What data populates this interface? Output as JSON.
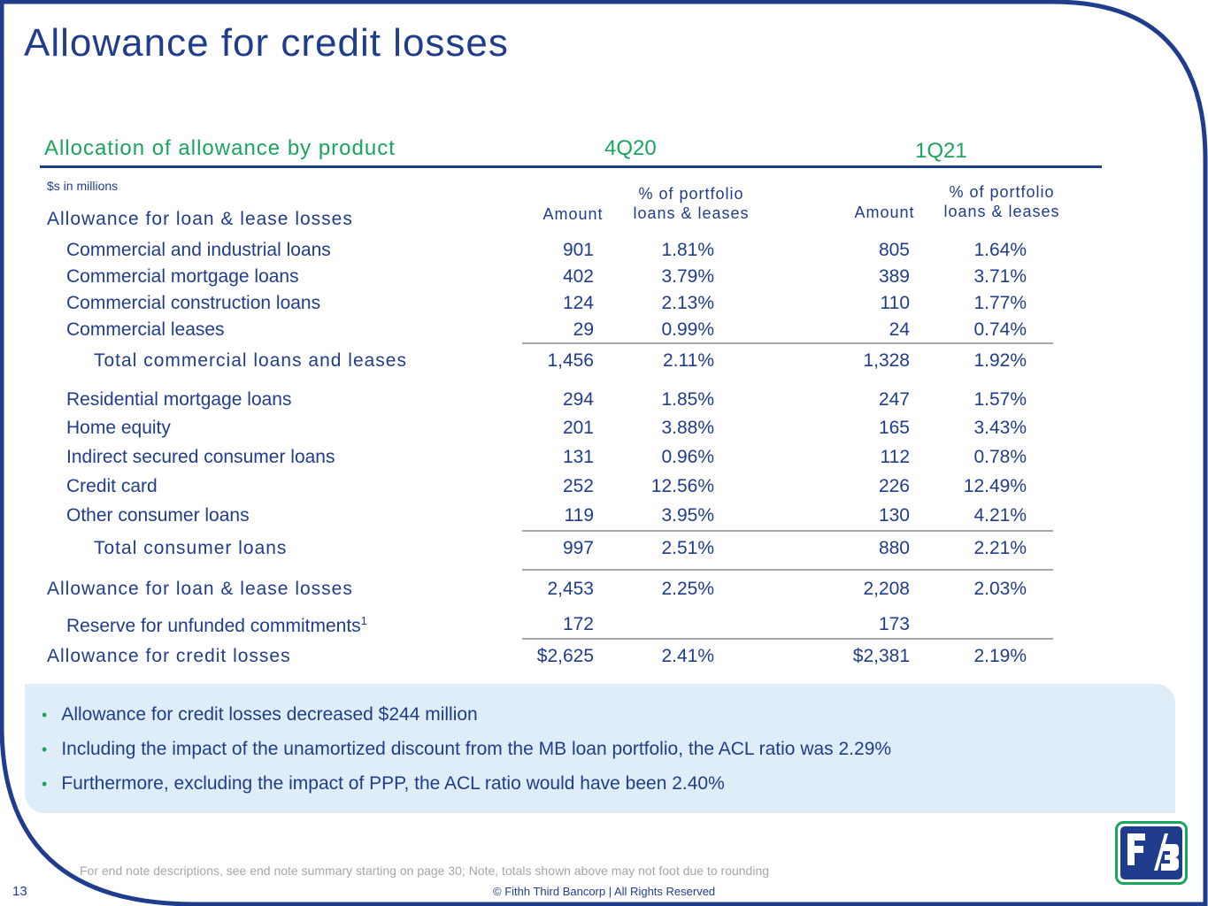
{
  "slide": {
    "title": "Allowance for credit losses",
    "page_number": "13",
    "footnote": "For end note descriptions, see end note summary starting on page 30; Note, totals shown above may not foot due to rounding",
    "copyright": "© Fithh Third Bancorp | All Rights Reserved"
  },
  "table": {
    "heading": "Allocation of allowance by product",
    "period1": "4Q20",
    "period2": "1Q21",
    "units": "$s in millions",
    "col_amount": "Amount",
    "col_pct_line1": "% of portfolio",
    "col_pct_line2": "loans & leases",
    "section_label": "Allowance for loan & lease losses",
    "rows": [
      {
        "label": "Commercial and industrial loans",
        "a1": "901",
        "p1": "1.81%",
        "a2": "805",
        "p2": "1.64%"
      },
      {
        "label": "Commercial mortgage loans",
        "a1": "402",
        "p1": "3.79%",
        "a2": "389",
        "p2": "3.71%"
      },
      {
        "label": "Commercial construction loans",
        "a1": "124",
        "p1": "2.13%",
        "a2": "110",
        "p2": "1.77%"
      },
      {
        "label": "Commercial leases",
        "a1": "29",
        "p1": "0.99%",
        "a2": "24",
        "p2": "0.74%"
      },
      {
        "label": "Total commercial loans and leases",
        "a1": "1,456",
        "p1": "2.11%",
        "a2": "1,328",
        "p2": "1.92%"
      },
      {
        "label": "Residential mortgage loans",
        "a1": "294",
        "p1": "1.85%",
        "a2": "247",
        "p2": "1.57%"
      },
      {
        "label": "Home equity",
        "a1": "201",
        "p1": "3.88%",
        "a2": "165",
        "p2": "3.43%"
      },
      {
        "label": "Indirect secured consumer loans",
        "a1": "131",
        "p1": "0.96%",
        "a2": "112",
        "p2": "0.78%"
      },
      {
        "label": "Credit card",
        "a1": "252",
        "p1": "12.56%",
        "a2": "226",
        "p2": "12.49%"
      },
      {
        "label": "Other consumer loans",
        "a1": "119",
        "p1": "3.95%",
        "a2": "130",
        "p2": "4.21%"
      },
      {
        "label": "Total consumer loans",
        "a1": "997",
        "p1": "2.51%",
        "a2": "880",
        "p2": "2.21%"
      },
      {
        "label": "Allowance for loan & lease losses",
        "a1": "2,453",
        "p1": "2.25%",
        "a2": "2,208",
        "p2": "2.03%"
      },
      {
        "label": "Reserve for unfunded commitments",
        "sup": "1",
        "a1": "172",
        "p1": "",
        "a2": "173",
        "p2": ""
      },
      {
        "label": "Allowance for credit losses",
        "a1": "$2,625",
        "p1": "2.41%",
        "a2": "$2,381",
        "p2": "2.19%"
      }
    ]
  },
  "bullets": [
    "Allowance for credit losses decreased $244 million",
    "Including the impact of the unamortized discount from the MB loan portfolio, the ACL ratio was 2.29%",
    "Furthermore, excluding the impact of PPP, the ACL ratio would have been 2.40%"
  ],
  "colors": {
    "brand_blue": "#1f3d8c",
    "brand_green": "#1aa55c",
    "callout_bg": "#deedf8"
  },
  "icons": {
    "logo": "fifth-third-logo",
    "bullet": "bullet-dot-icon"
  }
}
